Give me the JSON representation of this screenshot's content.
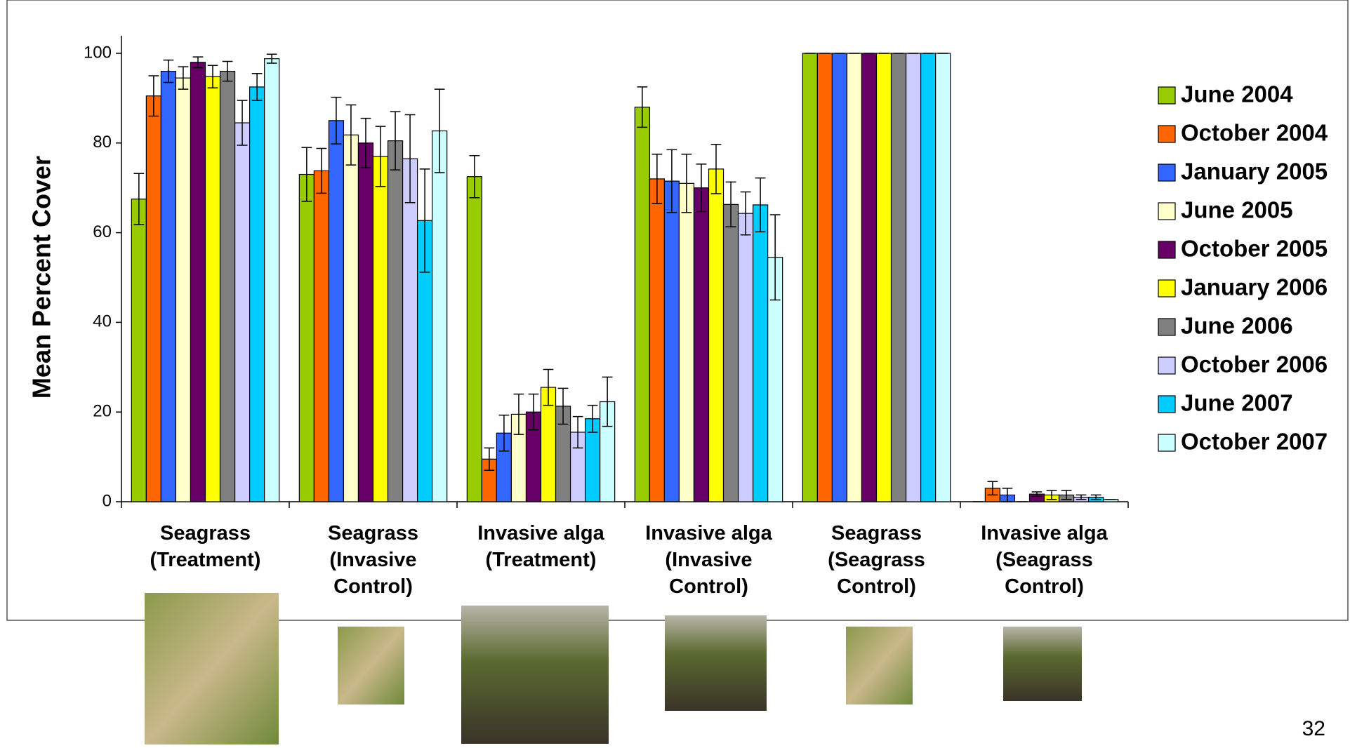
{
  "chart_data": {
    "type": "bar",
    "y_label": "Mean Percent Cover",
    "categories": [
      "Seagrass\n(Treatment)",
      "Seagrass\n(Invasive\nControl)",
      "Invasive alga\n(Treatment)",
      "Invasive alga\n(Invasive\nControl)",
      "Seagrass\n(Seagrass\nControl)",
      "Invasive alga\n(Seagrass\nControl)"
    ],
    "series": [
      {
        "name": "June 2004",
        "color": "#99cc00",
        "values": [
          67.5,
          73,
          72.5,
          88,
          100,
          0
        ],
        "errors": [
          5.7,
          6,
          4.7,
          4.5,
          0,
          0
        ]
      },
      {
        "name": "October 2004",
        "color": "#ff6600",
        "values": [
          90.5,
          73.8,
          9.5,
          72,
          100,
          3
        ],
        "errors": [
          4.5,
          5,
          2.5,
          5.5,
          0,
          1.5
        ]
      },
      {
        "name": "January 2005",
        "color": "#3366ff",
        "values": [
          96,
          85,
          15.3,
          71.5,
          100,
          1.5
        ],
        "errors": [
          2.5,
          5.2,
          4,
          7,
          0,
          1.5
        ]
      },
      {
        "name": "June 2005",
        "color": "#ffffcc",
        "values": [
          94.5,
          81.8,
          19.5,
          71,
          100,
          0
        ],
        "errors": [
          2.5,
          6.7,
          4.5,
          6.5,
          0,
          0
        ]
      },
      {
        "name": "October 2005",
        "color": "#660066",
        "values": [
          98,
          80,
          20,
          70,
          100,
          1.7
        ],
        "errors": [
          1.2,
          5.5,
          4,
          5.3,
          0,
          0.5
        ]
      },
      {
        "name": "January 2006",
        "color": "#ffff00",
        "values": [
          94.8,
          77,
          25.5,
          74.2,
          100,
          1.5
        ],
        "errors": [
          2.5,
          6.7,
          4,
          5.5,
          0,
          1
        ]
      },
      {
        "name": "June 2006",
        "color": "#808080",
        "values": [
          96,
          80.5,
          21.3,
          66.3,
          100,
          1.5
        ],
        "errors": [
          2.2,
          6.5,
          4,
          5,
          0,
          1
        ]
      },
      {
        "name": "October 2006",
        "color": "#ccccff",
        "values": [
          84.5,
          76.5,
          15.5,
          64.3,
          100,
          1
        ],
        "errors": [
          5,
          9.8,
          3.5,
          4.8,
          0,
          0.5
        ]
      },
      {
        "name": "June 2007",
        "color": "#00ccff",
        "values": [
          92.5,
          62.7,
          18.5,
          66.2,
          100,
          1
        ],
        "errors": [
          3,
          11.5,
          3,
          6,
          0,
          0.5
        ]
      },
      {
        "name": "October 2007",
        "color": "#ccffff",
        "values": [
          98.8,
          82.7,
          22.3,
          54.5,
          100,
          0.5
        ],
        "errors": [
          1,
          9.3,
          5.5,
          9.5,
          0,
          0
        ]
      }
    ],
    "ylim": [
      0,
      100
    ],
    "yticks": [
      0,
      20,
      40,
      60,
      80,
      100
    ],
    "grid": false,
    "legend": "right"
  },
  "page_number": "32"
}
